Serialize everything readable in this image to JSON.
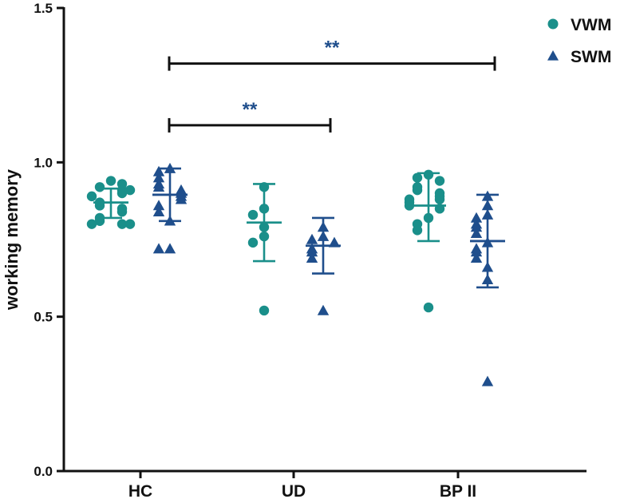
{
  "chart_data": {
    "type": "scatter",
    "title": "",
    "xlabel": "",
    "ylabel": "working memory",
    "ylim": [
      0,
      1.5
    ],
    "yticks": [
      "0.0",
      "0.5",
      "1.0",
      "1.5"
    ],
    "categories": [
      "HC",
      "UD",
      "BP II"
    ],
    "grid": false,
    "legend_position": "top-right",
    "series": [
      {
        "name": "VWM",
        "marker": "circle",
        "color": "#1a8f8a",
        "groups": [
          {
            "category": "HC",
            "mean": 0.87,
            "sd_low": 0.82,
            "sd_high": 0.915,
            "points": [
              0.94,
              0.92,
              0.93,
              0.91,
              0.9,
              0.91,
              0.89,
              0.87,
              0.86,
              0.85,
              0.84,
              0.82,
              0.81,
              0.8,
              0.8,
              0.8
            ]
          },
          {
            "category": "UD",
            "mean": 0.805,
            "sd_low": 0.68,
            "sd_high": 0.93,
            "points": [
              0.92,
              0.85,
              0.83,
              0.79,
              0.76,
              0.74,
              0.52
            ]
          },
          {
            "category": "BP II",
            "mean": 0.86,
            "sd_low": 0.745,
            "sd_high": 0.965,
            "points": [
              0.96,
              0.95,
              0.94,
              0.92,
              0.91,
              0.9,
              0.89,
              0.88,
              0.88,
              0.87,
              0.86,
              0.85,
              0.82,
              0.8,
              0.78,
              0.53
            ]
          }
        ]
      },
      {
        "name": "SWM",
        "marker": "triangle",
        "color": "#1f4e8c",
        "groups": [
          {
            "category": "HC",
            "mean": 0.895,
            "sd_low": 0.81,
            "sd_high": 0.98,
            "points": [
              0.98,
              0.97,
              0.95,
              0.93,
              0.92,
              0.91,
              0.9,
              0.89,
              0.88,
              0.86,
              0.84,
              0.81,
              0.72,
              0.72
            ]
          },
          {
            "category": "UD",
            "mean": 0.73,
            "sd_low": 0.64,
            "sd_high": 0.82,
            "points": [
              0.79,
              0.76,
              0.75,
              0.74,
              0.72,
              0.71,
              0.69,
              0.52
            ]
          },
          {
            "category": "BP II",
            "mean": 0.745,
            "sd_low": 0.595,
            "sd_high": 0.895,
            "points": [
              0.89,
              0.86,
              0.83,
              0.82,
              0.8,
              0.79,
              0.77,
              0.74,
              0.72,
              0.71,
              0.69,
              0.66,
              0.62,
              0.29
            ]
          }
        ]
      }
    ],
    "significance": [
      {
        "label": "**",
        "from": "HC",
        "to": "UD",
        "y": 1.12
      },
      {
        "label": "**",
        "from": "HC",
        "to": "BP II",
        "y": 1.32
      }
    ],
    "sig_color": "#1f4e8c"
  }
}
